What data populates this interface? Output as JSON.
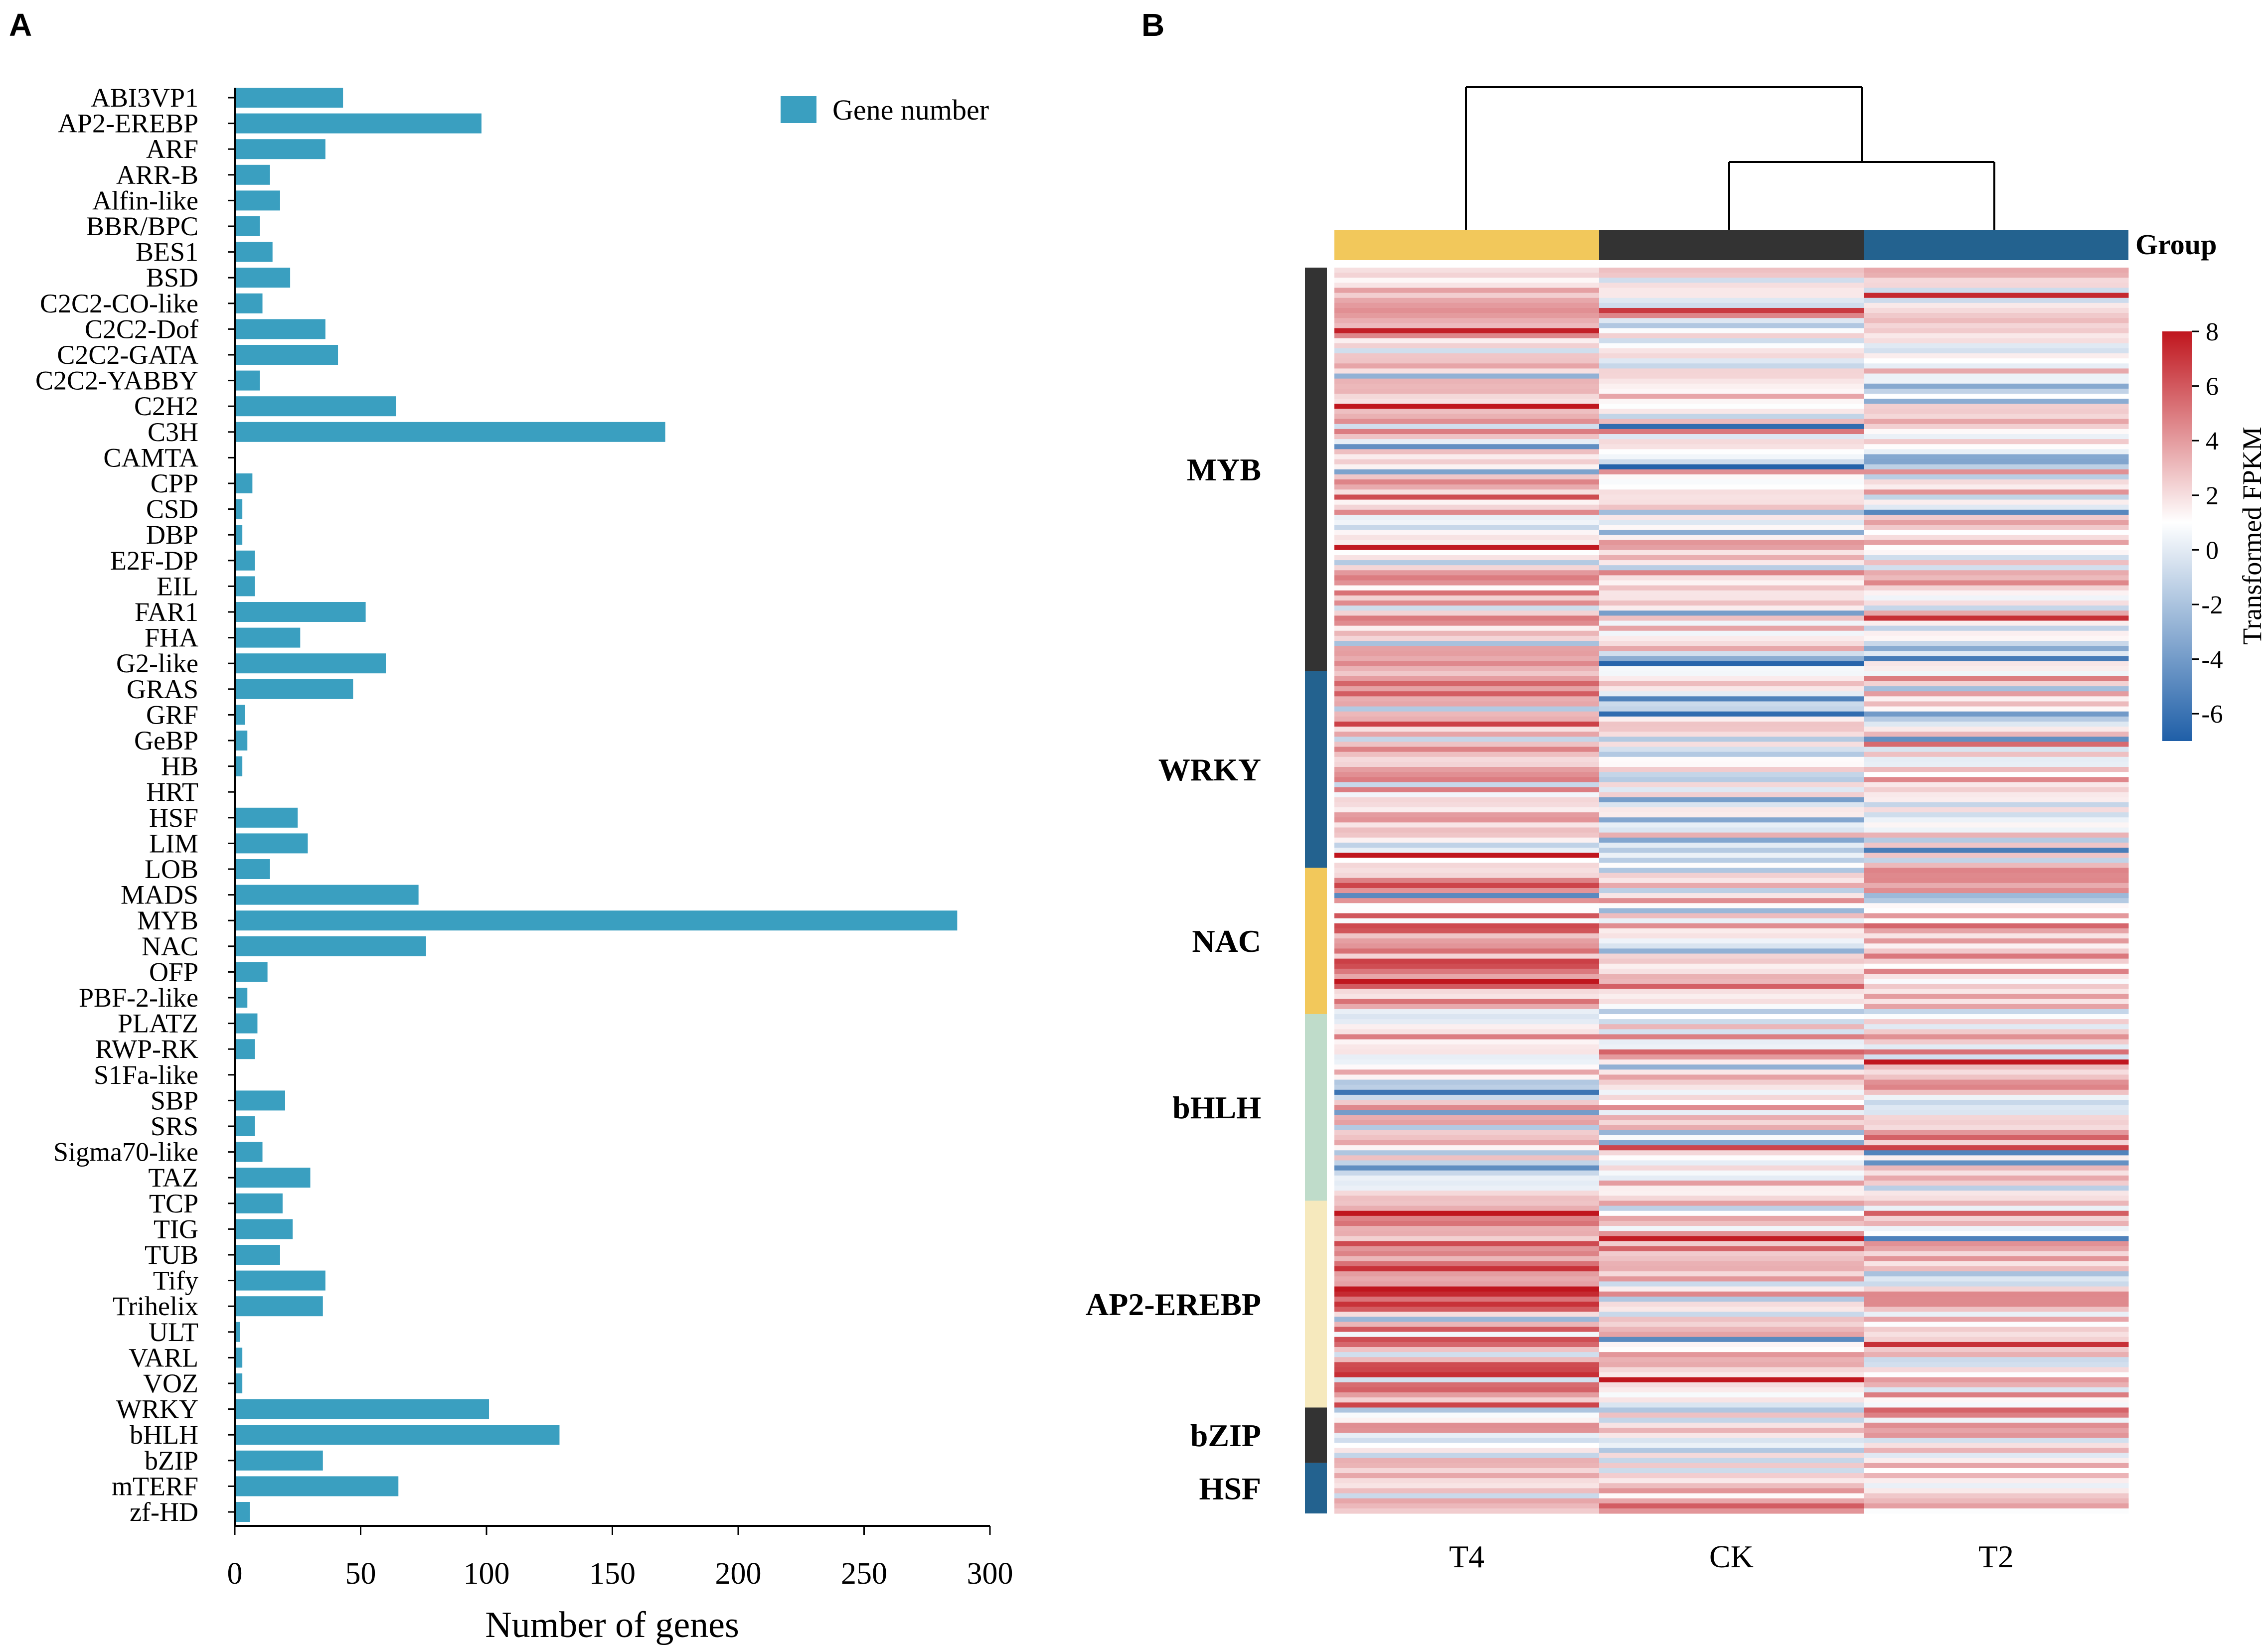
{
  "panel_labels": {
    "a": "A",
    "b": "B"
  },
  "colors": {
    "bar": "#3a9fc0",
    "axis": "#000000",
    "group_T4": "#f2c85b",
    "group_CK": "#333333",
    "group_T2": "#23628f",
    "family_dark": "#333333",
    "family_blue": "#23628f",
    "family_yellow": "#f2c85b",
    "family_green": "#bfdcca",
    "family_cream": "#f6e9bd",
    "scale_low": "#1f5fa8",
    "scale_mid": "#ffffff",
    "scale_high": "#c0161e"
  },
  "chart_data": [
    {
      "type": "bar",
      "orientation": "horizontal",
      "xlabel": "Number of genes",
      "ylabel": "",
      "xlim": [
        0,
        300
      ],
      "xticks": [
        0,
        50,
        100,
        150,
        200,
        250,
        300
      ],
      "legend": {
        "label": "Gene number",
        "position": "top-right"
      },
      "categories": [
        "ABI3VP1",
        "AP2-EREBP",
        "ARF",
        "ARR-B",
        "Alfin-like",
        "BBR/BPC",
        "BES1",
        "BSD",
        "C2C2-CO-like",
        "C2C2-Dof",
        "C2C2-GATA",
        "C2C2-YABBY",
        "C2H2",
        "C3H",
        "CAMTA",
        "CPP",
        "CSD",
        "DBP",
        "E2F-DP",
        "EIL",
        "FAR1",
        "FHA",
        "G2-like",
        "GRAS",
        "GRF",
        "GeBP",
        "HB",
        "HRT",
        "HSF",
        "LIM",
        "LOB",
        "MADS",
        "MYB",
        "NAC",
        "OFP",
        "PBF-2-like",
        "PLATZ",
        "RWP-RK",
        "S1Fa-like",
        "SBP",
        "SRS",
        "Sigma70-like",
        "TAZ",
        "TCP",
        "TIG",
        "TUB",
        "Tify",
        "Trihelix",
        "ULT",
        "VARL",
        "VOZ",
        "WRKY",
        "bHLH",
        "bZIP",
        "mTERF",
        "zf-HD"
      ],
      "values": [
        43,
        98,
        36,
        14,
        18,
        10,
        15,
        22,
        11,
        36,
        41,
        10,
        64,
        171,
        0,
        7,
        3,
        3,
        8,
        8,
        52,
        26,
        60,
        47,
        4,
        5,
        3,
        0,
        25,
        29,
        14,
        73,
        287,
        76,
        13,
        5,
        9,
        8,
        0,
        20,
        8,
        11,
        30,
        19,
        23,
        18,
        36,
        35,
        2,
        3,
        3,
        101,
        129,
        35,
        65,
        6
      ]
    },
    {
      "type": "heatmap",
      "title": "",
      "columns": [
        "T4",
        "CK",
        "T2"
      ],
      "column_group_label": "Group",
      "colorbar": {
        "label": "Transformed FPKM",
        "min": -7,
        "max": 8,
        "ticks": [
          "8",
          "6",
          "4",
          "2",
          "0",
          "-2",
          "-4",
          "-6"
        ]
      },
      "families": [
        {
          "name": "MYB",
          "color": "family_dark",
          "rows": 80
        },
        {
          "name": "WRKY",
          "color": "family_blue",
          "rows": 39
        },
        {
          "name": "NAC",
          "color": "family_yellow",
          "rows": 29
        },
        {
          "name": "bHLH",
          "color": "family_green",
          "rows": 37
        },
        {
          "name": "AP2-EREBP",
          "color": "family_cream",
          "rows": 41
        },
        {
          "name": "bZIP",
          "color": "family_dark",
          "rows": 11
        },
        {
          "name": "HSF",
          "color": "family_blue",
          "rows": 10
        }
      ],
      "family_column_means": {
        "MYB": [
          1.6,
          0.8,
          0.6
        ],
        "WRKY": [
          2.8,
          -0.6,
          -0.2
        ],
        "NAC": [
          3.2,
          0.2,
          1.5
        ],
        "bHLH": [
          0.2,
          1.2,
          0.8
        ],
        "AP2-EREBP": [
          4.2,
          1.5,
          0.8
        ],
        "bZIP": [
          1.2,
          0.2,
          1.8
        ],
        "HSF": [
          0.5,
          1.0,
          1.5
        ]
      },
      "dendrogram": {
        "merge_order": [
          [
            "CK",
            "T2"
          ],
          [
            "T4",
            "CK+T2"
          ]
        ]
      }
    }
  ]
}
